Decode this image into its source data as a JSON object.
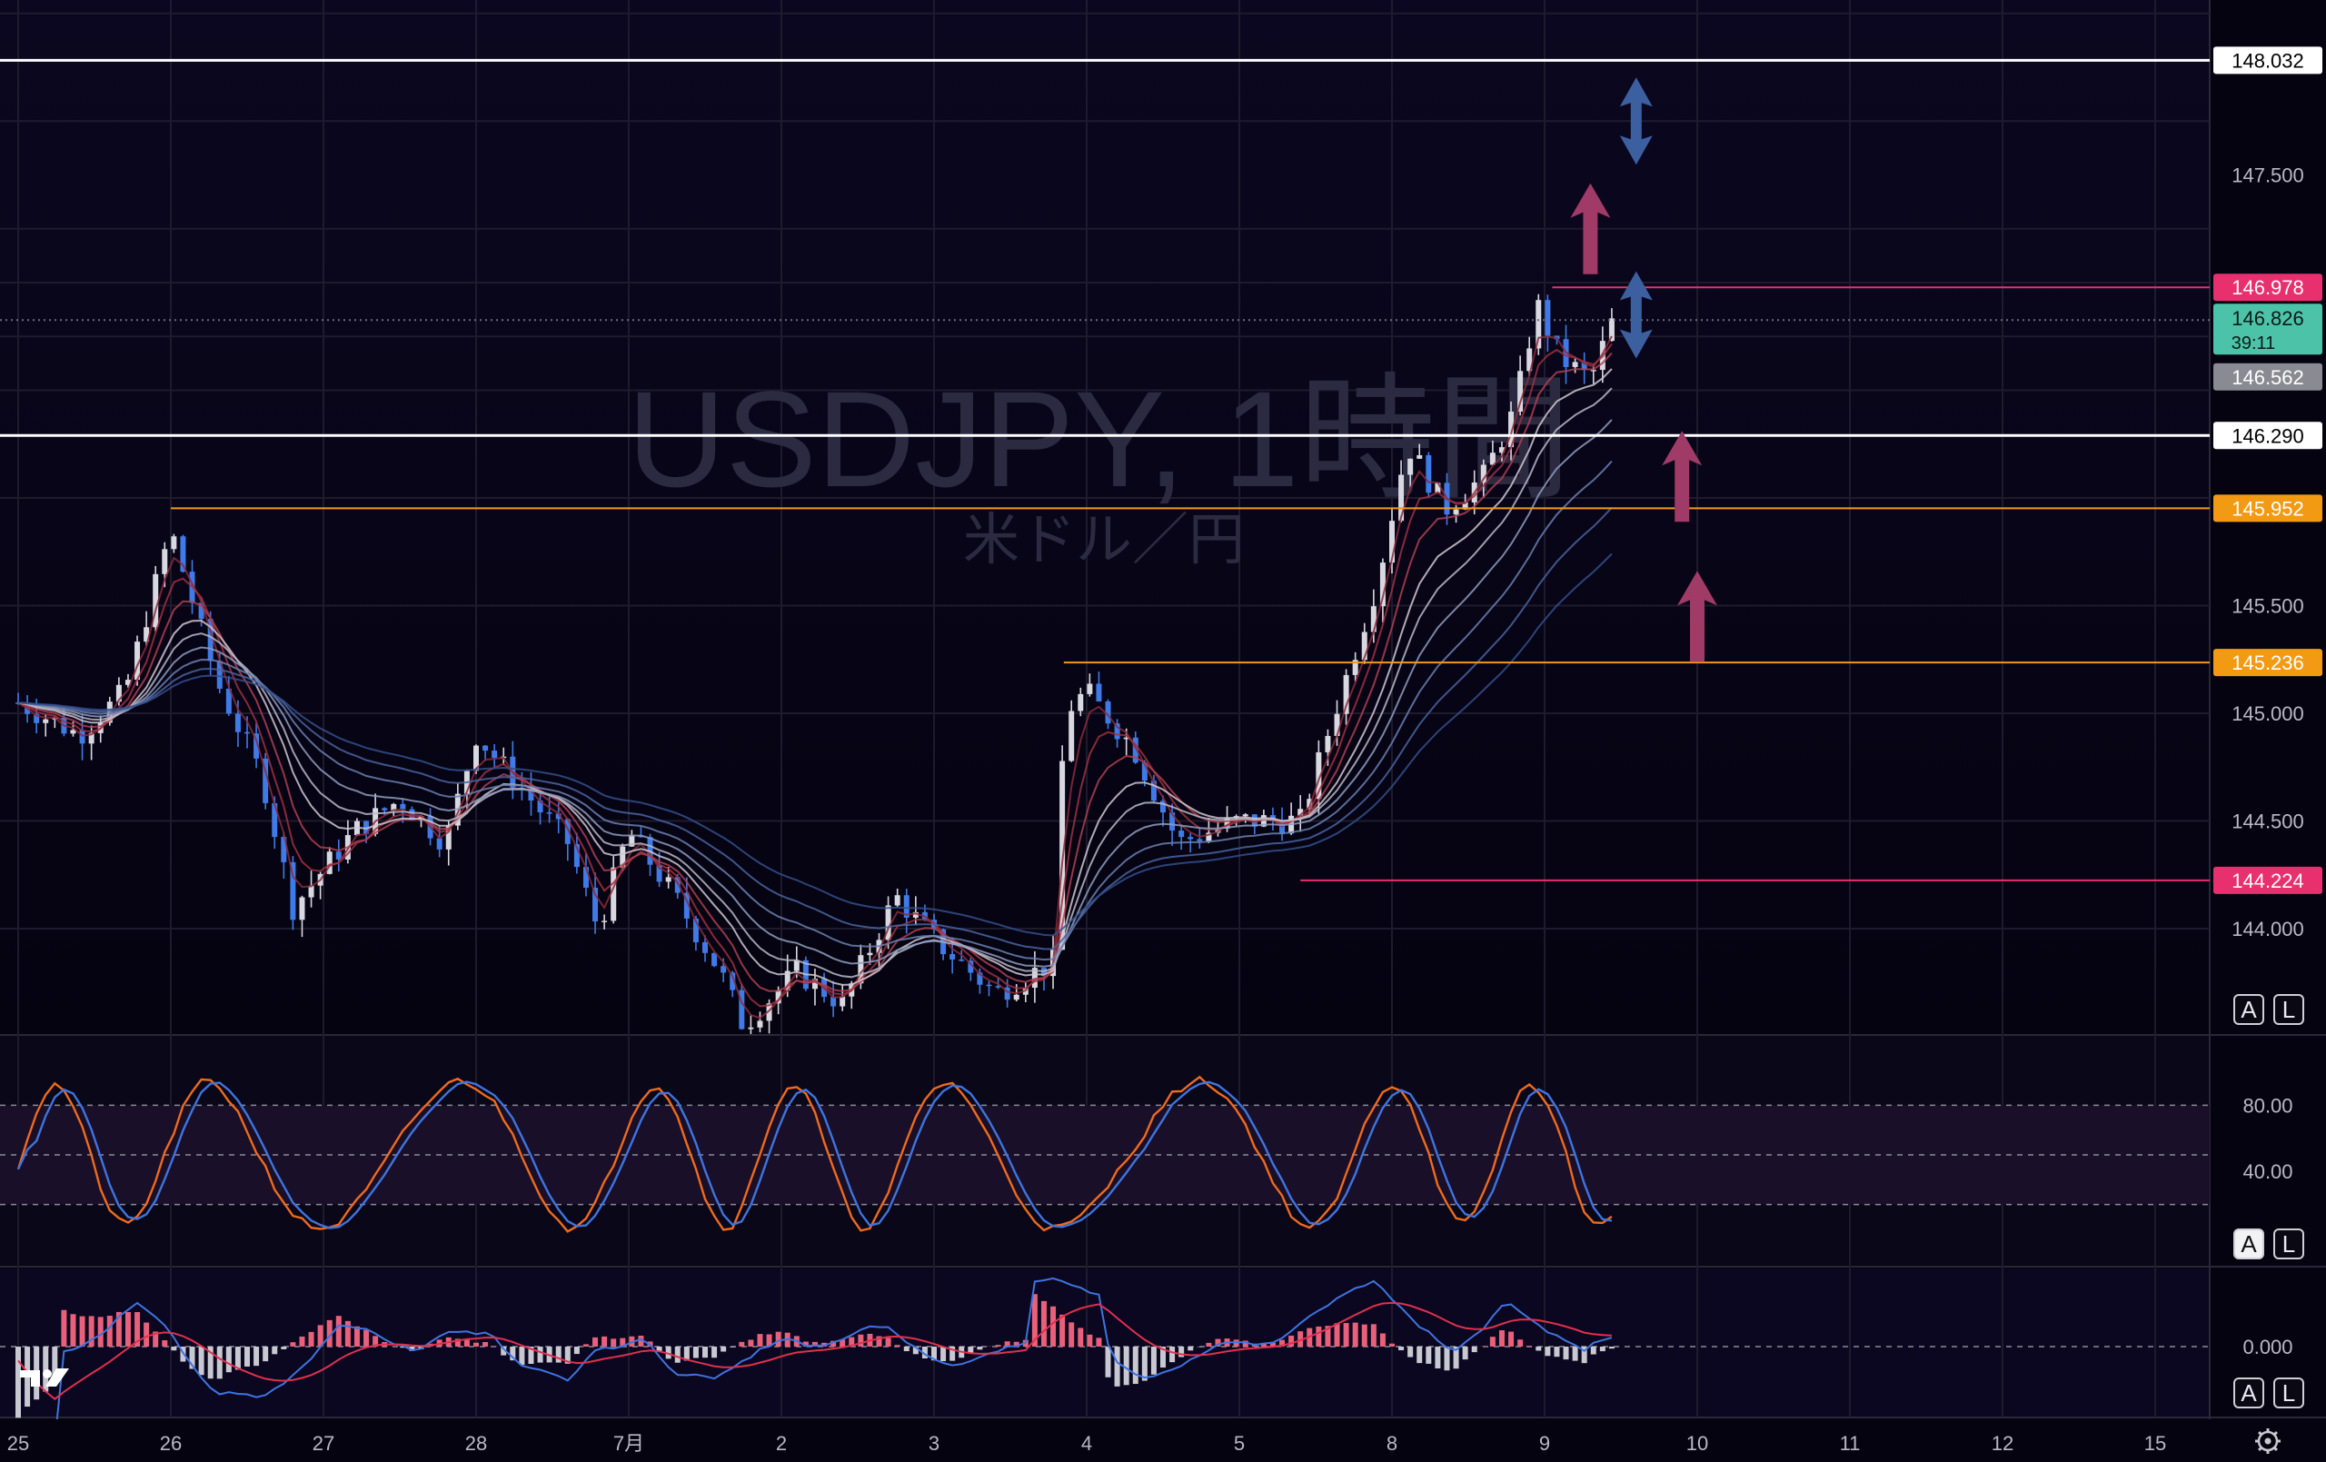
{
  "watermark": {
    "symbol": "USDJPY, 1時間",
    "subtitle": "米ドル／円"
  },
  "price_axis": {
    "ticks": [
      147.5,
      145.5,
      145.0,
      144.5,
      144.0
    ]
  },
  "price_levels": [
    {
      "label": "148.032",
      "value": 148.032,
      "color": "#ffffff",
      "kind": "line"
    },
    {
      "label": "146.978",
      "value": 146.978,
      "color": "#e8306e",
      "kind": "from-high"
    },
    {
      "label": "146.562",
      "value": 146.562,
      "color": "#8a8a92",
      "kind": "tag-only"
    },
    {
      "label": "146.290",
      "value": 146.29,
      "color": "#ffffff",
      "kind": "line"
    },
    {
      "label": "145.952",
      "value": 145.952,
      "color": "#f29a14",
      "kind": "from-25"
    },
    {
      "label": "145.236",
      "value": 145.236,
      "color": "#f29a14",
      "kind": "from-jul4"
    },
    {
      "label": "144.224",
      "value": 144.224,
      "color": "#e8306e",
      "kind": "from-jul5"
    }
  ],
  "current_price": {
    "price": "146.826",
    "countdown": "39:11",
    "value": 146.826
  },
  "stoch_axis": {
    "ticks": [
      "80.00",
      "40.00"
    ]
  },
  "macd_axis": {
    "ticks": [
      "0.000"
    ]
  },
  "time_axis": {
    "labels": [
      "25",
      "26",
      "27",
      "28",
      "7月",
      "2",
      "3",
      "4",
      "5",
      "8",
      "9",
      "10",
      "11",
      "12",
      "15"
    ]
  },
  "scale_buttons": {
    "auto": "A",
    "log": "L"
  },
  "logo": "TV",
  "icon_names": [
    "settings-gear-icon",
    "tradingview-logo-icon",
    "arrow-up-icon",
    "double-arrow-icon"
  ],
  "arrows": [
    {
      "type": "double",
      "color": "#3c5fa0",
      "price": 147.75,
      "day": 10.6
    },
    {
      "type": "up",
      "color": "#a03a66",
      "price": 147.25,
      "day": 10.3
    },
    {
      "type": "double",
      "color": "#3c5fa0",
      "price": 146.85,
      "day": 10.6
    },
    {
      "type": "up",
      "color": "#a03a66",
      "price": 146.1,
      "day": 10.9
    },
    {
      "type": "up",
      "color": "#a03a66",
      "price": 145.45,
      "day": 11.0
    }
  ],
  "chart_data": {
    "type": "candlestick",
    "title": "USDJPY, 1時間",
    "subtitle": "米ドル／円",
    "x_ticks": [
      "25",
      "26",
      "27",
      "28",
      "7月",
      "2",
      "3",
      "4",
      "5",
      "8",
      "9",
      "10",
      "11",
      "12",
      "15"
    ],
    "y_ticks": [
      147.5,
      145.5,
      145.0,
      144.5,
      144.0
    ],
    "price_path": [
      {
        "day": 0.0,
        "price": 145.05
      },
      {
        "day": 0.4,
        "price": 144.9
      },
      {
        "day": 0.7,
        "price": 145.1
      },
      {
        "day": 1.0,
        "price": 145.85
      },
      {
        "day": 1.3,
        "price": 145.15
      },
      {
        "day": 1.6,
        "price": 144.7
      },
      {
        "day": 1.8,
        "price": 144.1
      },
      {
        "day": 2.2,
        "price": 144.45
      },
      {
        "day": 2.5,
        "price": 144.6
      },
      {
        "day": 2.8,
        "price": 144.4
      },
      {
        "day": 3.0,
        "price": 144.9
      },
      {
        "day": 3.3,
        "price": 144.65
      },
      {
        "day": 3.6,
        "price": 144.4
      },
      {
        "day": 3.8,
        "price": 144.0
      },
      {
        "day": 4.0,
        "price": 144.45
      },
      {
        "day": 4.3,
        "price": 144.15
      },
      {
        "day": 4.6,
        "price": 143.8
      },
      {
        "day": 4.75,
        "price": 143.55
      },
      {
        "day": 5.1,
        "price": 143.8
      },
      {
        "day": 5.4,
        "price": 143.65
      },
      {
        "day": 5.75,
        "price": 144.15
      },
      {
        "day": 6.0,
        "price": 143.95
      },
      {
        "day": 6.4,
        "price": 143.7
      },
      {
        "day": 6.8,
        "price": 143.85
      },
      {
        "day": 6.85,
        "price": 145.0
      },
      {
        "day": 7.0,
        "price": 145.1
      },
      {
        "day": 7.3,
        "price": 144.85
      },
      {
        "day": 7.6,
        "price": 144.4
      },
      {
        "day": 8.0,
        "price": 144.5
      },
      {
        "day": 8.4,
        "price": 144.5
      },
      {
        "day": 8.6,
        "price": 144.95
      },
      {
        "day": 8.9,
        "price": 145.6
      },
      {
        "day": 9.1,
        "price": 146.25
      },
      {
        "day": 9.35,
        "price": 145.95
      },
      {
        "day": 9.6,
        "price": 146.1
      },
      {
        "day": 9.8,
        "price": 146.4
      },
      {
        "day": 9.95,
        "price": 146.9
      },
      {
        "day": 10.1,
        "price": 146.65
      },
      {
        "day": 10.3,
        "price": 146.55
      },
      {
        "day": 10.45,
        "price": 146.83
      }
    ],
    "levels": [
      148.032,
      146.978,
      146.562,
      146.29,
      145.952,
      145.236,
      144.224
    ],
    "current_price": 146.826,
    "stochastic": {
      "upper": 80,
      "lower": 20,
      "axis_labels": [
        80,
        40
      ]
    },
    "macd": {
      "zero": 0.0
    }
  }
}
